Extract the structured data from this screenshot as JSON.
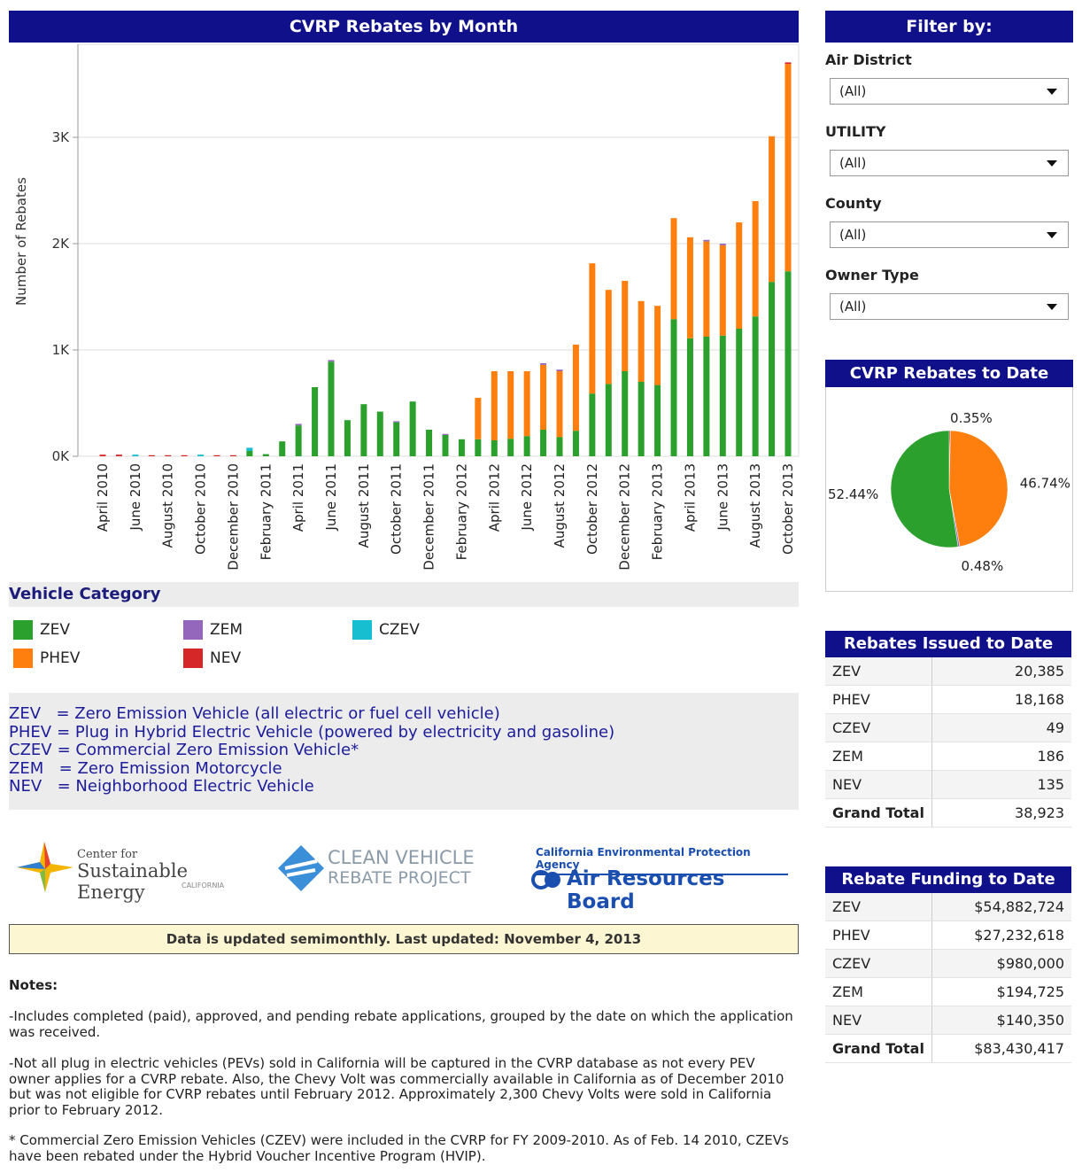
{
  "chart_data": [
    {
      "type": "bar",
      "stacked": true,
      "title": "CVRP Rebates by Month",
      "y_label": "Number of Rebates",
      "categories": [
        "April 2010",
        null,
        "June 2010",
        null,
        "August 2010",
        null,
        "October 2010",
        null,
        "December 2010",
        null,
        "February 2011",
        null,
        "April 2011",
        null,
        "June 2011",
        null,
        "August 2011",
        null,
        "October 2011",
        null,
        "December 2011",
        null,
        "February 2012",
        null,
        "April 2012",
        null,
        "June 2012",
        null,
        "August 2012",
        null,
        "October 2012",
        null,
        "December 2012",
        null,
        "February 2013",
        null,
        "April 2013",
        null,
        "June 2013",
        null,
        "August 2013",
        null,
        "October 2013"
      ],
      "series": [
        {
          "name": "ZEV",
          "color": "#2ca02c",
          "values": [
            0,
            0,
            0,
            0,
            0,
            0,
            0,
            0,
            0,
            50,
            20,
            140,
            290,
            650,
            890,
            340,
            490,
            420,
            320,
            515,
            250,
            200,
            160,
            160,
            150,
            165,
            190,
            250,
            180,
            240,
            590,
            680,
            800,
            700,
            670,
            1290,
            1110,
            1125,
            1135,
            1200,
            1315,
            1640,
            1740
          ]
        },
        {
          "name": "PHEV",
          "color": "#ff7f0e",
          "values": [
            0,
            0,
            0,
            0,
            0,
            0,
            0,
            0,
            0,
            0,
            0,
            0,
            0,
            0,
            0,
            0,
            0,
            0,
            0,
            0,
            0,
            0,
            0,
            390,
            650,
            635,
            610,
            610,
            620,
            810,
            1225,
            885,
            850,
            760,
            745,
            950,
            950,
            895,
            850,
            1000,
            1085,
            1370,
            1950
          ]
        },
        {
          "name": "ZEM",
          "color": "#9467bd",
          "values": [
            0,
            0,
            0,
            0,
            0,
            0,
            0,
            0,
            0,
            0,
            0,
            0,
            15,
            0,
            15,
            0,
            0,
            0,
            10,
            0,
            0,
            10,
            0,
            0,
            0,
            0,
            0,
            15,
            15,
            0,
            0,
            0,
            0,
            0,
            0,
            0,
            0,
            15,
            15,
            0,
            0,
            0,
            0
          ]
        },
        {
          "name": "NEV",
          "color": "#d62728",
          "values": [
            15,
            15,
            0,
            10,
            10,
            10,
            0,
            10,
            10,
            0,
            0,
            0,
            0,
            0,
            0,
            0,
            0,
            0,
            0,
            0,
            0,
            0,
            0,
            0,
            0,
            0,
            0,
            0,
            0,
            0,
            0,
            0,
            0,
            0,
            0,
            0,
            0,
            0,
            0,
            0,
            0,
            0,
            15
          ]
        },
        {
          "name": "CZEV",
          "color": "#17becf",
          "values": [
            0,
            0,
            15,
            0,
            0,
            0,
            15,
            0,
            0,
            30,
            0,
            0,
            0,
            0,
            0,
            0,
            0,
            0,
            0,
            0,
            0,
            0,
            0,
            0,
            0,
            0,
            0,
            0,
            0,
            0,
            0,
            0,
            0,
            0,
            0,
            0,
            0,
            0,
            0,
            0,
            0,
            0,
            0
          ]
        }
      ],
      "ylim": [
        0,
        3875
      ],
      "yticks": [
        {
          "value": 0,
          "label": "0K"
        },
        {
          "value": 1000,
          "label": "1K"
        },
        {
          "value": 2000,
          "label": "2K"
        },
        {
          "value": 3000,
          "label": "3K"
        }
      ],
      "grid": true,
      "legend_title": "Vehicle Category"
    },
    {
      "type": "pie",
      "title": "CVRP Rebates to Date",
      "values": [
        0.35,
        46.74,
        0.48,
        52.44
      ],
      "value_labels": [
        "0.35%",
        "46.74%",
        "0.48%",
        "52.44%"
      ],
      "colors": [
        "#d62728",
        "#ff7f0e",
        "#9467bd",
        "#2ca02c"
      ]
    }
  ],
  "filters": {
    "title": "Filter by:",
    "items": [
      {
        "label": "Air District",
        "value": "(All)"
      },
      {
        "label": "UTILITY",
        "value": "(All)"
      },
      {
        "label": "County",
        "value": "(All)"
      },
      {
        "label": "Owner Type",
        "value": "(All)"
      }
    ]
  },
  "definitions": [
    {
      "abbr": "ZEV",
      "text": "  = Zero Emission Vehicle (all electric or fuel cell vehicle)"
    },
    {
      "abbr": "PHEV",
      "text": "= Plug in Hybrid Electric Vehicle (powered by electricity and gasoline)"
    },
    {
      "abbr": "CZEV",
      "text": "= Commercial Zero Emission Vehicle*"
    },
    {
      "abbr": "ZEM",
      "text": "  = Zero Emission Motorcycle"
    },
    {
      "abbr": "NEV",
      "text": "  = Neighborhood Electric Vehicle"
    }
  ],
  "logos": {
    "cse": [
      "Center for",
      "Sustainable Energy",
      "CALIFORNIA"
    ],
    "cvrp": [
      "CLEAN VEHICLE",
      "REBATE PROJECT"
    ],
    "arb": [
      "California Environmental Protection Agency",
      "Air Resources Board"
    ]
  },
  "update": "Data is updated semimonthly. Last updated: November 4, 2013",
  "notes": {
    "title": "Notes:",
    "items": [
      "-Includes completed (paid), approved, and pending rebate applications, grouped by the date on which the application was received.",
      "-Not all plug in electric vehicles (PEVs) sold in California will be captured in the CVRP database as not every PEV owner applies for a CVRP rebate.  Also, the Chevy Volt was commercially available in California as of December 2010 but was not eligible for CVRP rebates until February 2012.  Approximately 2,300 Chevy Volts were sold in California prior to February 2012.",
      "* Commercial Zero Emission Vehicles (CZEV) were included in the CVRP for FY 2009-2010. As of Feb. 14 2010, CZEVs have been rebated under the Hybrid Voucher Incentive Program (HVIP)."
    ]
  },
  "rebates_table": {
    "title": "Rebates Issued to Date",
    "rows": [
      [
        "ZEV",
        "20,385"
      ],
      [
        "PHEV",
        "18,168"
      ],
      [
        "CZEV",
        "49"
      ],
      [
        "ZEM",
        "186"
      ],
      [
        "NEV",
        "135"
      ],
      [
        "Grand Total",
        "38,923"
      ]
    ]
  },
  "funding_table": {
    "title": "Rebate Funding to Date",
    "rows": [
      [
        "ZEV",
        "$54,882,724"
      ],
      [
        "PHEV",
        "$27,232,618"
      ],
      [
        "CZEV",
        "$980,000"
      ],
      [
        "ZEM",
        "$194,725"
      ],
      [
        "NEV",
        "$140,350"
      ],
      [
        "Grand Total",
        "$83,430,417"
      ]
    ]
  }
}
